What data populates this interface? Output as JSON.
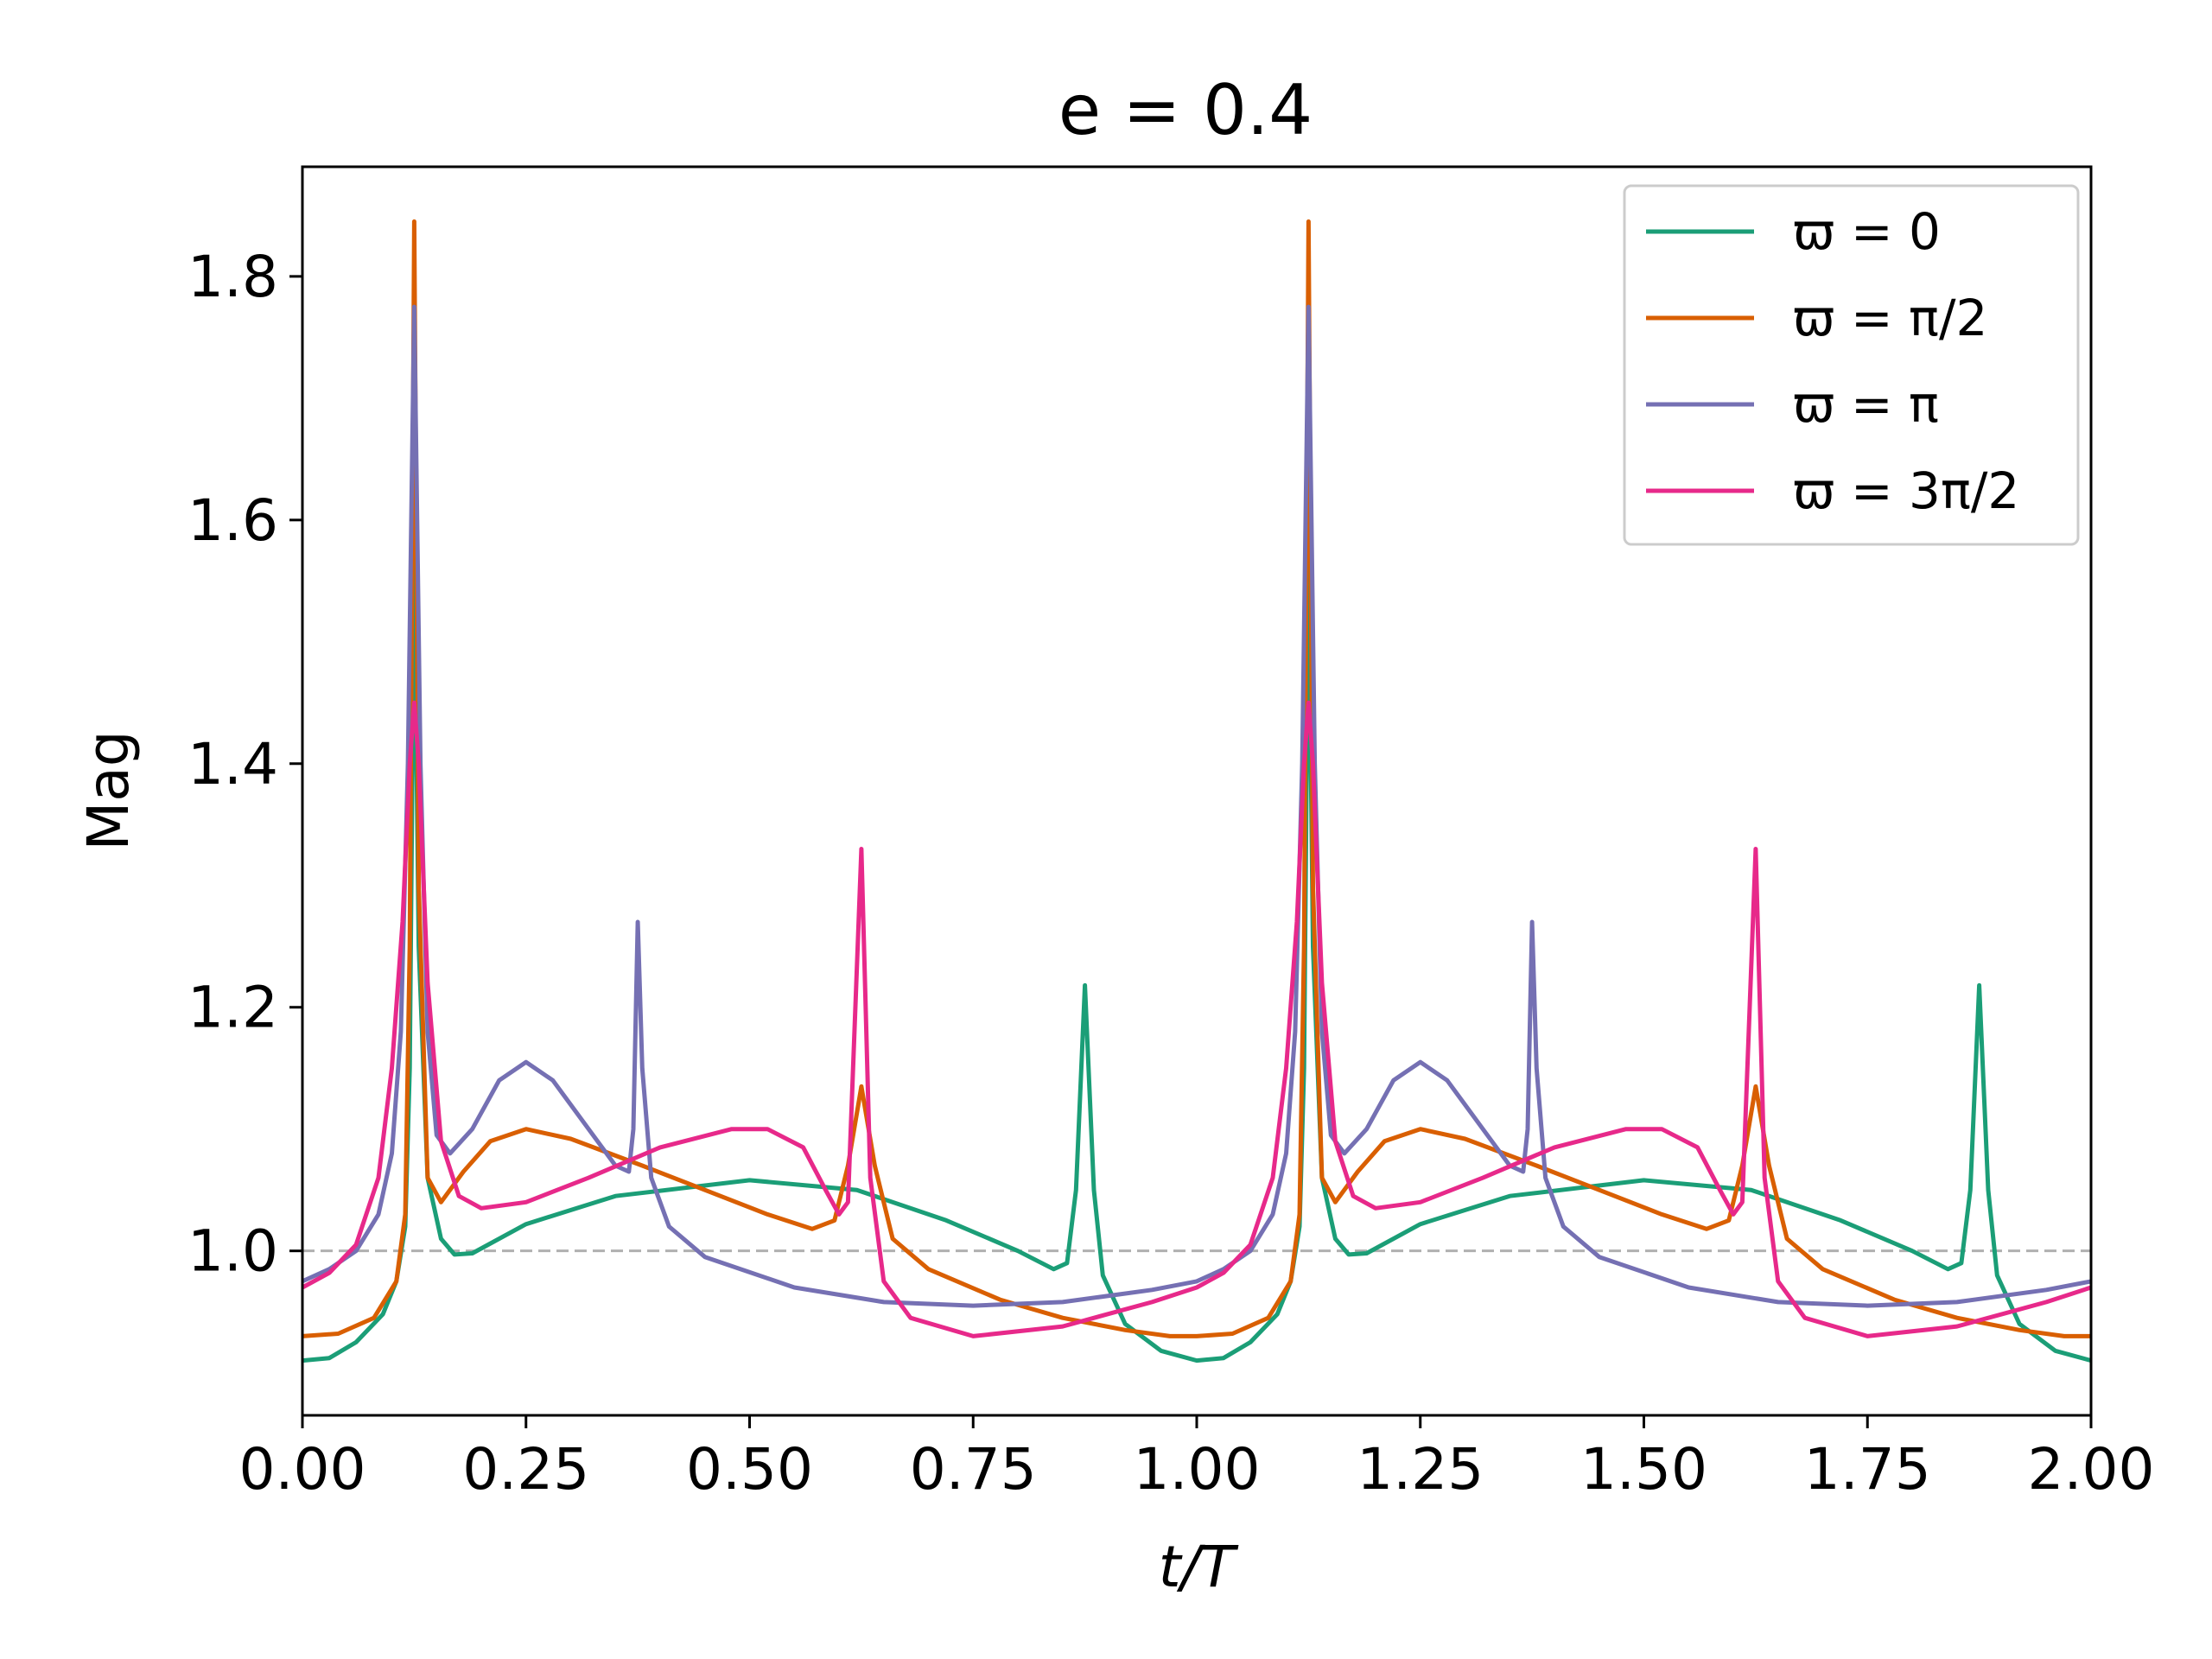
{
  "chart_data": {
    "type": "line",
    "title": "e = 0.4",
    "xlabel": "t/T",
    "ylabel": "Mag",
    "xlim": [
      0.0,
      2.0
    ],
    "ylim": [
      0.865,
      1.89
    ],
    "xticks": [
      0.0,
      0.25,
      0.5,
      0.75,
      1.0,
      1.25,
      1.5,
      1.75,
      2.0
    ],
    "xtick_labels": [
      "0.00",
      "0.25",
      "0.50",
      "0.75",
      "1.00",
      "1.25",
      "1.50",
      "1.75",
      "2.00"
    ],
    "yticks": [
      1.0,
      1.2,
      1.4,
      1.6,
      1.8
    ],
    "ytick_labels": [
      "1.0",
      "1.2",
      "1.4",
      "1.6",
      "1.8"
    ],
    "reference_line": {
      "y": 1.0,
      "style": "dashed",
      "color": "#b0b0b0"
    },
    "legend_position": "top-right",
    "series": [
      {
        "name": "ϖ = 0",
        "color": "#1b9e77",
        "points": [
          [
            0.0,
            0.91
          ],
          [
            0.03,
            0.912
          ],
          [
            0.06,
            0.925
          ],
          [
            0.09,
            0.948
          ],
          [
            0.105,
            0.975
          ],
          [
            0.115,
            1.02
          ],
          [
            0.12,
            1.15
          ],
          [
            0.125,
            1.57
          ],
          [
            0.13,
            1.25
          ],
          [
            0.14,
            1.06
          ],
          [
            0.155,
            1.01
          ],
          [
            0.17,
            0.997
          ],
          [
            0.19,
            0.998
          ],
          [
            0.25,
            1.022
          ],
          [
            0.35,
            1.045
          ],
          [
            0.5,
            1.058
          ],
          [
            0.62,
            1.05
          ],
          [
            0.72,
            1.025
          ],
          [
            0.8,
            1.0
          ],
          [
            0.84,
            0.985
          ],
          [
            0.855,
            0.99
          ],
          [
            0.865,
            1.05
          ],
          [
            0.875,
            1.218
          ],
          [
            0.885,
            1.05
          ],
          [
            0.895,
            0.98
          ],
          [
            0.92,
            0.94
          ],
          [
            0.96,
            0.918
          ],
          [
            1.0,
            0.91
          ],
          [
            1.03,
            0.912
          ],
          [
            1.06,
            0.925
          ],
          [
            1.09,
            0.948
          ],
          [
            1.105,
            0.975
          ],
          [
            1.115,
            1.02
          ],
          [
            1.12,
            1.15
          ],
          [
            1.125,
            1.57
          ],
          [
            1.13,
            1.25
          ],
          [
            1.14,
            1.06
          ],
          [
            1.155,
            1.01
          ],
          [
            1.17,
            0.997
          ],
          [
            1.19,
            0.998
          ],
          [
            1.25,
            1.022
          ],
          [
            1.35,
            1.045
          ],
          [
            1.5,
            1.058
          ],
          [
            1.62,
            1.05
          ],
          [
            1.72,
            1.025
          ],
          [
            1.8,
            1.0
          ],
          [
            1.84,
            0.985
          ],
          [
            1.855,
            0.99
          ],
          [
            1.865,
            1.05
          ],
          [
            1.875,
            1.218
          ],
          [
            1.885,
            1.05
          ],
          [
            1.895,
            0.98
          ],
          [
            1.92,
            0.94
          ],
          [
            1.96,
            0.918
          ],
          [
            2.0,
            0.91
          ]
        ]
      },
      {
        "name": "ϖ = π/2",
        "color": "#d95f02",
        "points": [
          [
            0.0,
            0.93
          ],
          [
            0.04,
            0.932
          ],
          [
            0.08,
            0.945
          ],
          [
            0.105,
            0.975
          ],
          [
            0.115,
            1.03
          ],
          [
            0.12,
            1.25
          ],
          [
            0.125,
            1.845
          ],
          [
            0.13,
            1.3
          ],
          [
            0.14,
            1.06
          ],
          [
            0.155,
            1.04
          ],
          [
            0.18,
            1.065
          ],
          [
            0.21,
            1.09
          ],
          [
            0.25,
            1.1
          ],
          [
            0.3,
            1.092
          ],
          [
            0.38,
            1.07
          ],
          [
            0.45,
            1.05
          ],
          [
            0.52,
            1.03
          ],
          [
            0.57,
            1.018
          ],
          [
            0.595,
            1.025
          ],
          [
            0.61,
            1.07
          ],
          [
            0.625,
            1.135
          ],
          [
            0.64,
            1.07
          ],
          [
            0.66,
            1.01
          ],
          [
            0.7,
            0.985
          ],
          [
            0.78,
            0.96
          ],
          [
            0.85,
            0.945
          ],
          [
            0.92,
            0.935
          ],
          [
            0.97,
            0.93
          ],
          [
            1.0,
            0.93
          ],
          [
            1.04,
            0.932
          ],
          [
            1.08,
            0.945
          ],
          [
            1.105,
            0.975
          ],
          [
            1.115,
            1.03
          ],
          [
            1.12,
            1.25
          ],
          [
            1.125,
            1.845
          ],
          [
            1.13,
            1.3
          ],
          [
            1.14,
            1.06
          ],
          [
            1.155,
            1.04
          ],
          [
            1.18,
            1.065
          ],
          [
            1.21,
            1.09
          ],
          [
            1.25,
            1.1
          ],
          [
            1.3,
            1.092
          ],
          [
            1.38,
            1.07
          ],
          [
            1.45,
            1.05
          ],
          [
            1.52,
            1.03
          ],
          [
            1.57,
            1.018
          ],
          [
            1.595,
            1.025
          ],
          [
            1.61,
            1.07
          ],
          [
            1.625,
            1.135
          ],
          [
            1.64,
            1.07
          ],
          [
            1.66,
            1.01
          ],
          [
            1.7,
            0.985
          ],
          [
            1.78,
            0.96
          ],
          [
            1.85,
            0.945
          ],
          [
            1.92,
            0.935
          ],
          [
            1.97,
            0.93
          ],
          [
            2.0,
            0.93
          ]
        ]
      },
      {
        "name": "ϖ = π",
        "color": "#7570b3",
        "points": [
          [
            0.0,
            0.975
          ],
          [
            0.03,
            0.985
          ],
          [
            0.06,
            1.0
          ],
          [
            0.085,
            1.03
          ],
          [
            0.1,
            1.08
          ],
          [
            0.11,
            1.18
          ],
          [
            0.118,
            1.4
          ],
          [
            0.125,
            1.775
          ],
          [
            0.132,
            1.4
          ],
          [
            0.14,
            1.18
          ],
          [
            0.15,
            1.095
          ],
          [
            0.165,
            1.08
          ],
          [
            0.19,
            1.1
          ],
          [
            0.22,
            1.14
          ],
          [
            0.25,
            1.155
          ],
          [
            0.28,
            1.14
          ],
          [
            0.32,
            1.1
          ],
          [
            0.35,
            1.07
          ],
          [
            0.365,
            1.065
          ],
          [
            0.37,
            1.1
          ],
          [
            0.375,
            1.27
          ],
          [
            0.38,
            1.15
          ],
          [
            0.39,
            1.06
          ],
          [
            0.41,
            1.02
          ],
          [
            0.45,
            0.995
          ],
          [
            0.55,
            0.97
          ],
          [
            0.65,
            0.958
          ],
          [
            0.75,
            0.955
          ],
          [
            0.85,
            0.958
          ],
          [
            0.95,
            0.968
          ],
          [
            1.0,
            0.975
          ],
          [
            1.03,
            0.985
          ],
          [
            1.06,
            1.0
          ],
          [
            1.085,
            1.03
          ],
          [
            1.1,
            1.08
          ],
          [
            1.11,
            1.18
          ],
          [
            1.118,
            1.4
          ],
          [
            1.125,
            1.775
          ],
          [
            1.132,
            1.4
          ],
          [
            1.14,
            1.18
          ],
          [
            1.15,
            1.095
          ],
          [
            1.165,
            1.08
          ],
          [
            1.19,
            1.1
          ],
          [
            1.22,
            1.14
          ],
          [
            1.25,
            1.155
          ],
          [
            1.28,
            1.14
          ],
          [
            1.32,
            1.1
          ],
          [
            1.35,
            1.07
          ],
          [
            1.365,
            1.065
          ],
          [
            1.37,
            1.1
          ],
          [
            1.375,
            1.27
          ],
          [
            1.38,
            1.15
          ],
          [
            1.39,
            1.06
          ],
          [
            1.41,
            1.02
          ],
          [
            1.45,
            0.995
          ],
          [
            1.55,
            0.97
          ],
          [
            1.65,
            0.958
          ],
          [
            1.75,
            0.955
          ],
          [
            1.85,
            0.958
          ],
          [
            1.95,
            0.968
          ],
          [
            2.0,
            0.975
          ]
        ]
      },
      {
        "name": "ϖ = 3π/2",
        "color": "#e7298a",
        "points": [
          [
            0.0,
            0.97
          ],
          [
            0.03,
            0.982
          ],
          [
            0.06,
            1.005
          ],
          [
            0.085,
            1.06
          ],
          [
            0.1,
            1.15
          ],
          [
            0.112,
            1.27
          ],
          [
            0.12,
            1.4
          ],
          [
            0.125,
            1.45
          ],
          [
            0.13,
            1.4
          ],
          [
            0.14,
            1.22
          ],
          [
            0.155,
            1.09
          ],
          [
            0.175,
            1.045
          ],
          [
            0.2,
            1.035
          ],
          [
            0.25,
            1.04
          ],
          [
            0.32,
            1.06
          ],
          [
            0.4,
            1.085
          ],
          [
            0.48,
            1.1
          ],
          [
            0.52,
            1.1
          ],
          [
            0.56,
            1.085
          ],
          [
            0.585,
            1.05
          ],
          [
            0.6,
            1.03
          ],
          [
            0.61,
            1.04
          ],
          [
            0.625,
            1.33
          ],
          [
            0.635,
            1.06
          ],
          [
            0.65,
            0.975
          ],
          [
            0.68,
            0.945
          ],
          [
            0.75,
            0.93
          ],
          [
            0.85,
            0.938
          ],
          [
            0.95,
            0.958
          ],
          [
            1.0,
            0.97
          ],
          [
            1.03,
            0.982
          ],
          [
            1.06,
            1.005
          ],
          [
            1.085,
            1.06
          ],
          [
            1.1,
            1.15
          ],
          [
            1.112,
            1.27
          ],
          [
            1.12,
            1.4
          ],
          [
            1.125,
            1.45
          ],
          [
            1.13,
            1.4
          ],
          [
            1.14,
            1.22
          ],
          [
            1.155,
            1.09
          ],
          [
            1.175,
            1.045
          ],
          [
            1.2,
            1.035
          ],
          [
            1.25,
            1.04
          ],
          [
            1.32,
            1.06
          ],
          [
            1.4,
            1.085
          ],
          [
            1.48,
            1.1
          ],
          [
            1.52,
            1.1
          ],
          [
            1.56,
            1.085
          ],
          [
            1.585,
            1.05
          ],
          [
            1.6,
            1.03
          ],
          [
            1.61,
            1.04
          ],
          [
            1.625,
            1.33
          ],
          [
            1.635,
            1.06
          ],
          [
            1.65,
            0.975
          ],
          [
            1.68,
            0.945
          ],
          [
            1.75,
            0.93
          ],
          [
            1.85,
            0.938
          ],
          [
            1.95,
            0.958
          ],
          [
            2.0,
            0.97
          ]
        ]
      }
    ]
  }
}
